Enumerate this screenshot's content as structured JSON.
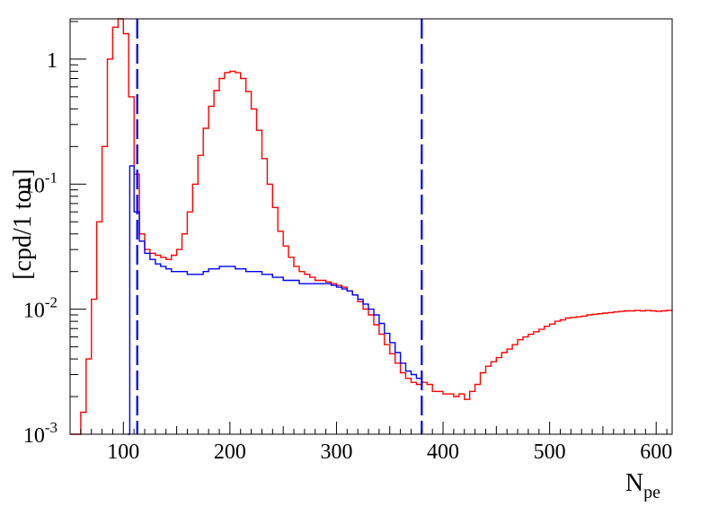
{
  "chart_data": {
    "type": "line",
    "title": "",
    "xlabel_main": "N",
    "xlabel_sub": "pe",
    "ylabel": "[cpd/1 ton]",
    "xlim": [
      50,
      615
    ],
    "ylim": [
      0.001,
      2.1
    ],
    "y_scale": "log",
    "grid": false,
    "x_ticks": [
      100,
      200,
      300,
      400,
      500,
      600
    ],
    "x_tick_labels": [
      "100",
      "200",
      "300",
      "400",
      "500",
      "600"
    ],
    "y_ticks": [
      0.001,
      0.01,
      0.1,
      1
    ],
    "y_tick_labels": [
      {
        "base": "10",
        "exp": "-3"
      },
      {
        "base": "10",
        "exp": "-2"
      },
      {
        "base": "10",
        "exp": "-1"
      },
      {
        "base": "1",
        "exp": ""
      }
    ],
    "cut_lines": [
      113,
      380
    ],
    "series": [
      {
        "color": "#ff0000",
        "points": [
          [
            50,
            0.001
          ],
          [
            55,
            0.001
          ],
          [
            60,
            0.0015
          ],
          [
            65,
            0.004
          ],
          [
            70,
            0.012
          ],
          [
            75,
            0.05
          ],
          [
            80,
            0.2
          ],
          [
            85,
            1.0
          ],
          [
            90,
            1.8
          ],
          [
            95,
            2.1
          ],
          [
            100,
            1.6
          ],
          [
            105,
            0.5
          ],
          [
            110,
            0.12
          ],
          [
            115,
            0.04
          ],
          [
            120,
            0.03
          ],
          [
            125,
            0.028
          ],
          [
            130,
            0.027
          ],
          [
            135,
            0.026
          ],
          [
            140,
            0.025
          ],
          [
            145,
            0.027
          ],
          [
            150,
            0.03
          ],
          [
            155,
            0.04
          ],
          [
            160,
            0.06
          ],
          [
            165,
            0.1
          ],
          [
            170,
            0.17
          ],
          [
            175,
            0.28
          ],
          [
            180,
            0.42
          ],
          [
            185,
            0.56
          ],
          [
            190,
            0.7
          ],
          [
            195,
            0.78
          ],
          [
            200,
            0.8
          ],
          [
            205,
            0.78
          ],
          [
            210,
            0.7
          ],
          [
            215,
            0.55
          ],
          [
            220,
            0.4
          ],
          [
            225,
            0.27
          ],
          [
            230,
            0.16
          ],
          [
            235,
            0.1
          ],
          [
            240,
            0.065
          ],
          [
            245,
            0.042
          ],
          [
            250,
            0.032
          ],
          [
            255,
            0.026
          ],
          [
            260,
            0.022
          ],
          [
            265,
            0.02
          ],
          [
            270,
            0.019
          ],
          [
            275,
            0.018
          ],
          [
            280,
            0.017
          ],
          [
            285,
            0.017
          ],
          [
            290,
            0.0165
          ],
          [
            295,
            0.016
          ],
          [
            300,
            0.0155
          ],
          [
            305,
            0.015
          ],
          [
            310,
            0.014
          ],
          [
            315,
            0.013
          ],
          [
            320,
            0.0115
          ],
          [
            325,
            0.01
          ],
          [
            330,
            0.009
          ],
          [
            335,
            0.0075
          ],
          [
            340,
            0.0063
          ],
          [
            345,
            0.0052
          ],
          [
            350,
            0.0044
          ],
          [
            355,
            0.0037
          ],
          [
            360,
            0.0031
          ],
          [
            365,
            0.0028
          ],
          [
            370,
            0.0026
          ],
          [
            375,
            0.0025
          ],
          [
            380,
            0.0026
          ],
          [
            385,
            0.0025
          ],
          [
            390,
            0.0022
          ],
          [
            395,
            0.0022
          ],
          [
            400,
            0.0021
          ],
          [
            405,
            0.0021
          ],
          [
            410,
            0.002
          ],
          [
            415,
            0.0021
          ],
          [
            420,
            0.0019
          ],
          [
            425,
            0.0022
          ],
          [
            430,
            0.0025
          ],
          [
            435,
            0.0031
          ],
          [
            440,
            0.0035
          ],
          [
            445,
            0.0038
          ],
          [
            450,
            0.0041
          ],
          [
            455,
            0.0045
          ],
          [
            460,
            0.0048
          ],
          [
            465,
            0.0052
          ],
          [
            470,
            0.0057
          ],
          [
            475,
            0.006
          ],
          [
            480,
            0.0063
          ],
          [
            485,
            0.0066
          ],
          [
            490,
            0.0069
          ],
          [
            495,
            0.0073
          ],
          [
            500,
            0.0076
          ],
          [
            505,
            0.008
          ],
          [
            510,
            0.0082
          ],
          [
            515,
            0.0085
          ],
          [
            520,
            0.0086
          ],
          [
            525,
            0.0087
          ],
          [
            530,
            0.0088
          ],
          [
            535,
            0.009
          ],
          [
            540,
            0.0091
          ],
          [
            545,
            0.0092
          ],
          [
            550,
            0.0093
          ],
          [
            555,
            0.0094
          ],
          [
            560,
            0.0095
          ],
          [
            565,
            0.0096
          ],
          [
            570,
            0.0097
          ],
          [
            575,
            0.0097
          ],
          [
            580,
            0.0098
          ],
          [
            585,
            0.0097
          ],
          [
            590,
            0.0098
          ],
          [
            595,
            0.0097
          ],
          [
            600,
            0.0096
          ],
          [
            605,
            0.0097
          ],
          [
            610,
            0.0098
          ],
          [
            615,
            0.0099
          ]
        ]
      },
      {
        "color": "#0000ff",
        "points": [
          [
            104,
            0.001
          ],
          [
            106,
            0.14
          ],
          [
            110,
            0.06
          ],
          [
            115,
            0.035
          ],
          [
            120,
            0.028
          ],
          [
            125,
            0.025
          ],
          [
            130,
            0.023
          ],
          [
            135,
            0.022
          ],
          [
            140,
            0.021
          ],
          [
            145,
            0.02
          ],
          [
            150,
            0.02
          ],
          [
            155,
            0.02
          ],
          [
            160,
            0.019
          ],
          [
            165,
            0.019
          ],
          [
            170,
            0.019
          ],
          [
            175,
            0.02
          ],
          [
            180,
            0.021
          ],
          [
            185,
            0.021
          ],
          [
            190,
            0.022
          ],
          [
            195,
            0.022
          ],
          [
            200,
            0.022
          ],
          [
            205,
            0.021
          ],
          [
            210,
            0.021
          ],
          [
            215,
            0.02
          ],
          [
            220,
            0.02
          ],
          [
            225,
            0.02
          ],
          [
            230,
            0.019
          ],
          [
            235,
            0.019
          ],
          [
            240,
            0.018
          ],
          [
            245,
            0.018
          ],
          [
            250,
            0.017
          ],
          [
            255,
            0.017
          ],
          [
            260,
            0.017
          ],
          [
            265,
            0.016
          ],
          [
            270,
            0.016
          ],
          [
            275,
            0.016
          ],
          [
            280,
            0.016
          ],
          [
            285,
            0.016
          ],
          [
            290,
            0.016
          ],
          [
            295,
            0.0155
          ],
          [
            300,
            0.015
          ],
          [
            305,
            0.0145
          ],
          [
            310,
            0.014
          ],
          [
            315,
            0.013
          ],
          [
            320,
            0.012
          ],
          [
            325,
            0.011
          ],
          [
            330,
            0.01
          ],
          [
            335,
            0.009
          ],
          [
            340,
            0.0077
          ],
          [
            345,
            0.0064
          ],
          [
            350,
            0.0054
          ],
          [
            355,
            0.0045
          ],
          [
            360,
            0.0037
          ],
          [
            365,
            0.0032
          ],
          [
            370,
            0.003
          ],
          [
            375,
            0.0028
          ],
          [
            380,
            0.0027
          ]
        ]
      }
    ]
  }
}
